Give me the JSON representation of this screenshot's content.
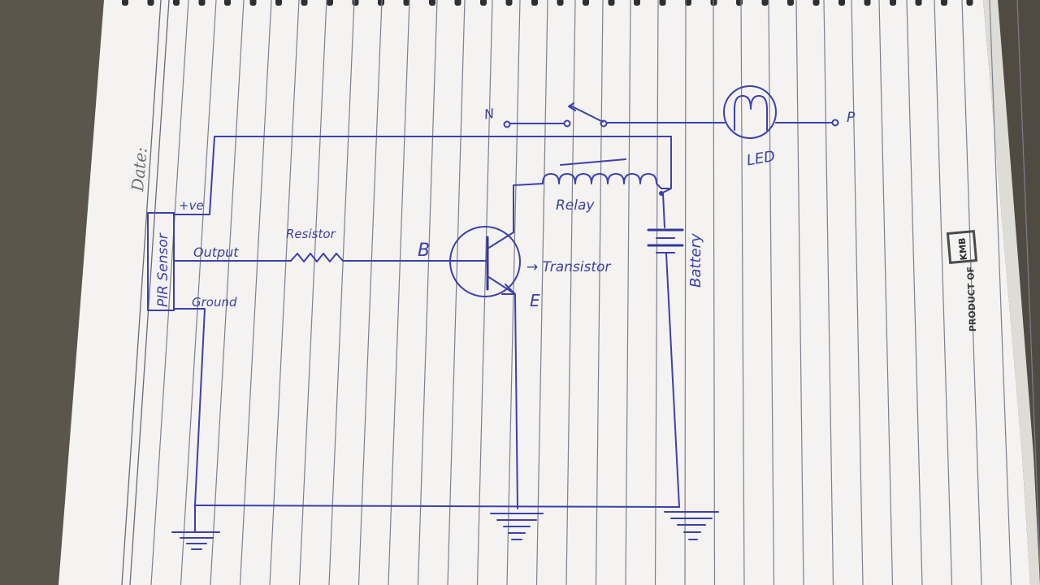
{
  "notebook": {
    "date_label": "Date:",
    "brand_caption": "PRODUCT OF",
    "brand_logo": "KMB"
  },
  "diagram": {
    "labels": {
      "pir_sensor": "PIR Sensor",
      "plus_ve": "+ve",
      "output": "Output",
      "ground": "Ground",
      "resistor": "Resistor",
      "base": "B",
      "emitter": "E",
      "transistor": "→ Transistor",
      "relay": "Relay",
      "battery": "Battery",
      "led": "LED",
      "neutral": "N",
      "phase": "P"
    }
  },
  "colors": {
    "ink": "#3d3fb0",
    "paper": "#f4f3f1",
    "background": "#5a554b"
  }
}
